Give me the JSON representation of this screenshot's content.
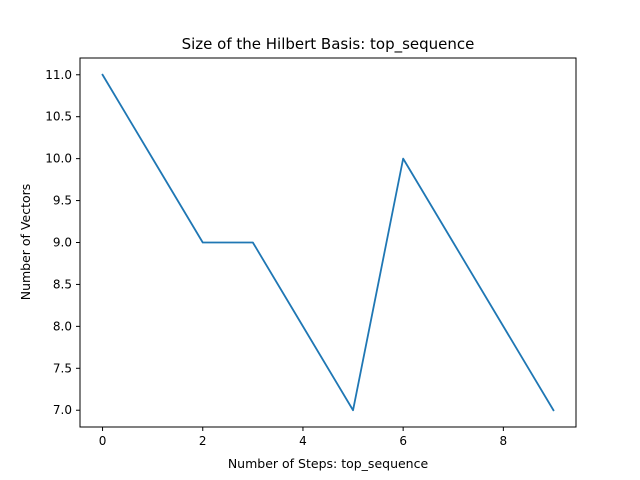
{
  "chart_data": {
    "type": "line",
    "title": "Size of the Hilbert Basis: top_sequence",
    "xlabel": "Number of Steps: top_sequence",
    "ylabel": "Number of Vectors",
    "x": [
      0,
      1,
      2,
      3,
      4,
      5,
      6,
      7,
      8,
      9
    ],
    "series": [
      {
        "values": [
          11,
          10,
          9,
          9,
          8,
          7,
          10,
          9,
          8,
          7
        ],
        "color": "#1f77b4"
      }
    ],
    "xlim": [
      -0.45,
      9.45
    ],
    "ylim": [
      6.8,
      11.2
    ],
    "xticks": [
      0,
      2,
      4,
      6,
      8
    ],
    "xtick_labels": [
      "0",
      "2",
      "4",
      "6",
      "8"
    ],
    "yticks": [
      7.0,
      7.5,
      8.0,
      8.5,
      9.0,
      9.5,
      10.0,
      10.5,
      11.0
    ],
    "ytick_labels": [
      "7.0",
      "7.5",
      "8.0",
      "8.5",
      "9.0",
      "9.5",
      "10.0",
      "10.5",
      "11.0"
    ],
    "grid": false,
    "legend": "none"
  }
}
